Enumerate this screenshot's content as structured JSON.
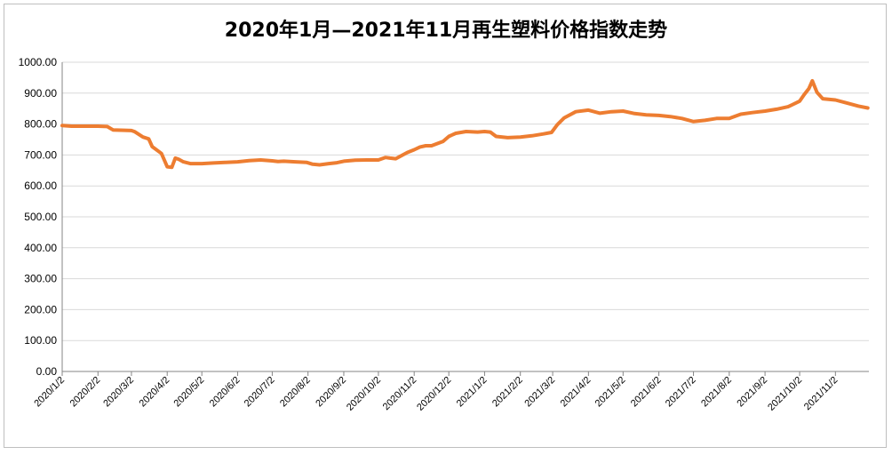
{
  "chart_data": {
    "type": "line",
    "title": "2020年1月—2021年11月再生塑料价格指数走势",
    "xlabel": "",
    "ylabel": "",
    "ylim": [
      0,
      1000
    ],
    "yticks": [
      "0.00",
      "100.00",
      "200.00",
      "300.00",
      "400.00",
      "500.00",
      "600.00",
      "700.00",
      "800.00",
      "900.00",
      "1000.00"
    ],
    "xticks": [
      "2020/1/2",
      "2020/2/2",
      "2020/3/2",
      "2020/4/2",
      "2020/5/2",
      "2020/6/2",
      "2020/7/2",
      "2020/8/2",
      "2020/9/2",
      "2020/10/2",
      "2020/11/2",
      "2020/12/2",
      "2021/1/2",
      "2021/2/2",
      "2021/3/2",
      "2021/4/2",
      "2021/5/2",
      "2021/6/2",
      "2021/7/2",
      "2021/8/2",
      "2021/9/2",
      "2021/10/2",
      "2021/11/2"
    ],
    "grid": true,
    "line_color": "#ED7D31",
    "series": [
      {
        "x": [
          "2020/1/2",
          "2020/1/10",
          "2020/1/20",
          "2020/2/2",
          "2020/2/10",
          "2020/2/15",
          "2020/2/25",
          "2020/3/2",
          "2020/3/5",
          "2020/3/12",
          "2020/3/17",
          "2020/3/20",
          "2020/3/28",
          "2020/4/2",
          "2020/4/6",
          "2020/4/9",
          "2020/4/12",
          "2020/4/16",
          "2020/4/22",
          "2020/5/2",
          "2020/5/12",
          "2020/5/22",
          "2020/6/2",
          "2020/6/12",
          "2020/6/22",
          "2020/7/2",
          "2020/7/7",
          "2020/7/12",
          "2020/7/22",
          "2020/8/1",
          "2020/8/6",
          "2020/8/12",
          "2020/8/20",
          "2020/8/27",
          "2020/9/2",
          "2020/9/12",
          "2020/9/22",
          "2020/10/2",
          "2020/10/8",
          "2020/10/12",
          "2020/10/17",
          "2020/10/27",
          "2020/11/2",
          "2020/11/7",
          "2020/11/12",
          "2020/11/17",
          "2020/11/27",
          "2020/12/2",
          "2020/12/8",
          "2020/12/17",
          "2020/12/27",
          "2021/1/2",
          "2021/1/7",
          "2021/1/12",
          "2021/1/22",
          "2021/2/2",
          "2021/2/12",
          "2021/2/22",
          "2021/3/1",
          "2021/3/6",
          "2021/3/12",
          "2021/3/22",
          "2021/4/2",
          "2021/4/12",
          "2021/4/22",
          "2021/5/2",
          "2021/5/12",
          "2021/5/22",
          "2021/6/2",
          "2021/6/12",
          "2021/6/22",
          "2021/7/2",
          "2021/7/12",
          "2021/7/22",
          "2021/8/2",
          "2021/8/12",
          "2021/8/22",
          "2021/9/2",
          "2021/9/12",
          "2021/9/22",
          "2021/10/2",
          "2021/10/6",
          "2021/10/10",
          "2021/10/13",
          "2021/10/17",
          "2021/10/22",
          "2021/11/2",
          "2021/11/12",
          "2021/11/22",
          "2021/11/30"
        ],
        "y": [
          795,
          793,
          793,
          793,
          792,
          781,
          780,
          779,
          775,
          758,
          752,
          727,
          705,
          662,
          660,
          690,
          686,
          678,
          672,
          672,
          674,
          676,
          678,
          682,
          684,
          681,
          679,
          680,
          678,
          676,
          670,
          668,
          672,
          675,
          680,
          683,
          684,
          684,
          692,
          690,
          688,
          708,
          717,
          726,
          730,
          730,
          744,
          760,
          770,
          776,
          774,
          776,
          774,
          760,
          756,
          758,
          762,
          768,
          773,
          798,
          820,
          840,
          845,
          835,
          840,
          842,
          834,
          830,
          828,
          824,
          818,
          808,
          812,
          818,
          818,
          832,
          837,
          842,
          848,
          856,
          874,
          896,
          915,
          940,
          903,
          882,
          878,
          868,
          858,
          852
        ]
      }
    ]
  }
}
